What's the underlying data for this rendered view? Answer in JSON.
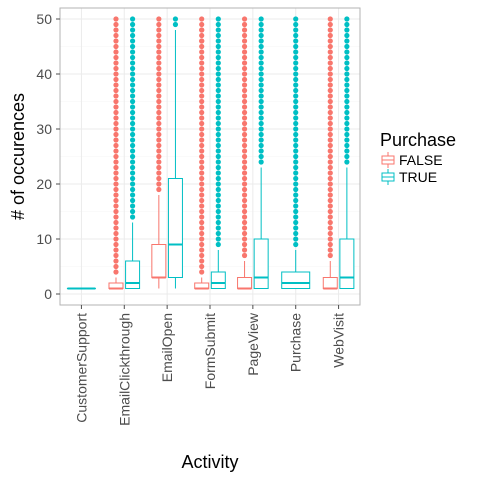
{
  "chart_data": {
    "type": "boxplot",
    "xlabel": "Activity",
    "ylabel": "# of occurences",
    "ylim": [
      -2,
      52
    ],
    "y_ticks": [
      0,
      10,
      20,
      30,
      40,
      50
    ],
    "grid": true,
    "legend_placement": "right",
    "legend_title": "Purchase",
    "categories": [
      "CustomerSupport",
      "EmailClickthrough",
      "EmailOpen",
      "FormSubmit",
      "PageView",
      "Purchase",
      "WebVisit"
    ],
    "series": [
      {
        "name": "FALSE",
        "color": "#F8766D",
        "boxes": [
          null,
          {
            "lower_whisker": 1,
            "q1": 1,
            "median": 1,
            "q3": 2,
            "upper_whisker": 3,
            "outliers_from": 4,
            "outliers_to": 50
          },
          {
            "lower_whisker": 1,
            "q1": 3,
            "median": 3,
            "q3": 9,
            "upper_whisker": 18,
            "outliers_from": 19,
            "outliers_to": 50
          },
          {
            "lower_whisker": 1,
            "q1": 1,
            "median": 1,
            "q3": 2,
            "upper_whisker": 3,
            "outliers_from": 4,
            "outliers_to": 50,
            "extra_outliers": [
              46,
              48
            ]
          },
          {
            "lower_whisker": 1,
            "q1": 1,
            "median": 1,
            "q3": 3,
            "upper_whisker": 6,
            "outliers_from": 7,
            "outliers_to": 50
          },
          null,
          {
            "lower_whisker": 1,
            "q1": 1,
            "median": 1,
            "q3": 3,
            "upper_whisker": 6,
            "outliers_from": 7,
            "outliers_to": 50
          }
        ]
      },
      {
        "name": "TRUE",
        "color": "#00BFC4",
        "boxes": [
          {
            "lower_whisker": 1,
            "q1": 1,
            "median": 1,
            "q3": 1,
            "upper_whisker": 1,
            "outliers_from": null,
            "outliers_to": null,
            "full_width": true
          },
          {
            "lower_whisker": 1,
            "q1": 1,
            "median": 2,
            "q3": 6,
            "upper_whisker": 13,
            "outliers_from": 14,
            "outliers_to": 50
          },
          {
            "lower_whisker": 1,
            "q1": 3,
            "median": 9,
            "q3": 21,
            "upper_whisker": 48,
            "outliers_from": 49,
            "outliers_to": 50
          },
          {
            "lower_whisker": 1,
            "q1": 1,
            "median": 2,
            "q3": 4,
            "upper_whisker": 8,
            "outliers_from": 9,
            "outliers_to": 50
          },
          {
            "lower_whisker": 1,
            "q1": 1,
            "median": 3,
            "q3": 10,
            "upper_whisker": 23,
            "outliers_from": 24,
            "outliers_to": 50
          },
          {
            "lower_whisker": 1,
            "q1": 1,
            "median": 2,
            "q3": 4,
            "upper_whisker": 8,
            "outliers_from": 9,
            "outliers_to": 50,
            "full_width": true
          },
          {
            "lower_whisker": 1,
            "q1": 1,
            "median": 3,
            "q3": 10,
            "upper_whisker": 23,
            "outliers_from": 24,
            "outliers_to": 50
          }
        ]
      }
    ]
  },
  "colors": {
    "panel_border": "#b3b3b3",
    "grid_major": "#ebebeb",
    "grid_minor": "#f5f5f5",
    "tick_text": "#4d4d4d"
  }
}
